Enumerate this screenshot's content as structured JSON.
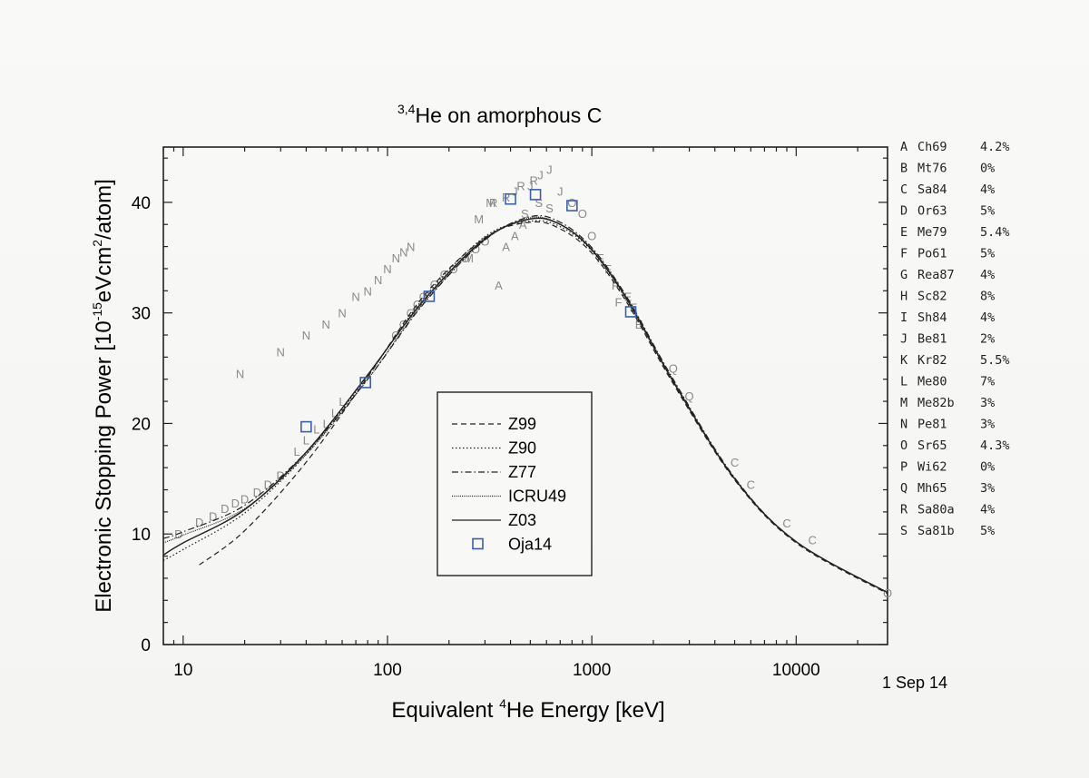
{
  "chart_data": {
    "type": "line",
    "title_sup": "3,4",
    "title_main": "He on amorphous C",
    "xlabel_pre": "Equivalent ",
    "xlabel_sup": "4",
    "xlabel_post": "He Energy [keV]",
    "ylabel_pre": "Electronic Stopping Power [10",
    "ylabel_sup1": "-15",
    "ylabel_mid": "eVcm",
    "ylabel_sup2": "2",
    "ylabel_post": "/atom]",
    "x_scale": "log",
    "xlim": [
      8,
      28000
    ],
    "ylim": [
      0,
      45
    ],
    "x_ticks": [
      10,
      100,
      1000,
      10000
    ],
    "x_tick_labels": [
      "10",
      "100",
      "1000",
      "10000"
    ],
    "y_ticks": [
      0,
      10,
      20,
      30,
      40
    ],
    "y_tick_labels": [
      "0",
      "10",
      "20",
      "30",
      "40"
    ],
    "legend_position": "center",
    "series": [
      {
        "name": "Z99",
        "style": "dashed",
        "x": [
          12,
          20,
          40,
          80,
          150,
          300,
          500,
          700,
          1000,
          1500,
          2500,
          5000,
          10000,
          28000
        ],
        "y": [
          7.2,
          10.3,
          16.5,
          24.2,
          31.5,
          36.8,
          38.2,
          37.6,
          35.4,
          30.8,
          23.6,
          14.9,
          9.2,
          4.6
        ]
      },
      {
        "name": "Z90",
        "style": "dotted",
        "x": [
          8,
          10,
          20,
          40,
          80,
          150,
          300,
          500,
          700,
          1000,
          1500,
          2500,
          5000,
          10000,
          28000
        ],
        "y": [
          7.6,
          8.6,
          11.9,
          17.2,
          24.3,
          31.3,
          36.9,
          38.3,
          37.8,
          35.6,
          31.0,
          23.8,
          15.0,
          9.3,
          4.7
        ]
      },
      {
        "name": "Z77",
        "style": "dashdot",
        "x": [
          8,
          10,
          20,
          40,
          80,
          150,
          300,
          500,
          700,
          1000,
          1500,
          2500,
          5000,
          10000,
          28000
        ],
        "y": [
          9.6,
          10.2,
          12.6,
          17.4,
          24.0,
          30.8,
          36.6,
          38.7,
          38.2,
          35.9,
          31.3,
          24.0,
          15.1,
          9.3,
          4.7
        ]
      },
      {
        "name": "ICRU49",
        "style": "dense-dot",
        "x": [
          8,
          10,
          20,
          40,
          80,
          150,
          300,
          500,
          700,
          1000,
          1500,
          2500,
          5000,
          10000,
          28000
        ],
        "y": [
          9.2,
          9.9,
          12.3,
          17.2,
          24.0,
          30.9,
          36.6,
          38.6,
          38.0,
          35.8,
          31.2,
          23.9,
          15.0,
          9.3,
          4.7
        ]
      },
      {
        "name": "Z03",
        "style": "solid",
        "x": [
          8,
          10,
          20,
          40,
          80,
          150,
          300,
          500,
          700,
          1000,
          1500,
          2500,
          5000,
          10000,
          28000
        ],
        "y": [
          8.1,
          9.2,
          12.2,
          17.4,
          24.4,
          31.1,
          36.7,
          38.5,
          38.0,
          35.7,
          31.1,
          23.8,
          15.0,
          9.3,
          4.7
        ]
      },
      {
        "name": "Oja14",
        "style": "square-marker",
        "x": [
          40,
          78,
          160,
          400,
          530,
          800,
          1550
        ],
        "y": [
          19.7,
          23.7,
          31.5,
          40.3,
          40.7,
          39.7,
          30.1
        ]
      }
    ],
    "markers": [
      {
        "label": "N",
        "x": [
          19,
          30,
          40,
          50,
          60,
          70,
          80,
          90,
          100,
          110,
          120,
          130
        ],
        "y": [
          24.5,
          26.5,
          28,
          29,
          30,
          31.5,
          32,
          33,
          34,
          35,
          35.5,
          36
        ]
      },
      {
        "label": "D",
        "x": [
          9.5,
          12,
          14,
          16,
          18,
          20,
          23,
          26,
          30
        ],
        "y": [
          10,
          11.1,
          11.6,
          12.3,
          12.8,
          13.2,
          13.8,
          14.5,
          15.3
        ]
      },
      {
        "label": "L",
        "x": [
          36,
          40,
          45,
          50,
          55,
          60
        ],
        "y": [
          17.5,
          18.5,
          19.5,
          20,
          21,
          22
        ]
      },
      {
        "label": "M",
        "x": [
          250,
          280,
          320
        ],
        "y": [
          35,
          38.5,
          40
        ]
      },
      {
        "label": "A",
        "x": [
          350,
          380,
          420,
          460
        ],
        "y": [
          32.5,
          36,
          37,
          38
        ]
      },
      {
        "label": "J",
        "x": [
          420,
          500,
          560,
          620,
          700
        ],
        "y": [
          41,
          41.5,
          42.5,
          43,
          41
        ]
      },
      {
        "label": "R",
        "x": [
          330,
          380,
          450,
          520
        ],
        "y": [
          40,
          40.5,
          41.5,
          42
        ]
      },
      {
        "label": "S",
        "x": [
          470,
          550,
          620
        ],
        "y": [
          39,
          40,
          39.5
        ]
      },
      {
        "label": "O",
        "x": [
          110,
          120,
          130,
          140,
          150,
          170,
          190,
          210,
          240,
          270,
          300,
          800,
          900,
          1000
        ],
        "y": [
          28,
          29,
          30,
          30.8,
          31.5,
          32.6,
          33.5,
          34,
          35,
          35.8,
          36.5,
          40,
          39,
          37
        ]
      },
      {
        "label": "F",
        "x": [
          1100,
          1200,
          1300,
          1350
        ],
        "y": [
          35,
          34,
          32.5,
          31
        ]
      },
      {
        "label": "E",
        "x": [
          1500,
          1600,
          1700
        ],
        "y": [
          31.5,
          30.5,
          29
        ]
      },
      {
        "label": "C",
        "x": [
          5000,
          6000,
          9000,
          12000
        ],
        "y": [
          16.5,
          14.5,
          11,
          9.5
        ]
      },
      {
        "label": "Q",
        "x": [
          2500,
          3000
        ],
        "y": [
          25,
          22.5
        ]
      },
      {
        "label": "O",
        "x": [
          28000
        ],
        "y": [
          4.7
        ]
      }
    ]
  },
  "legend": {
    "items": [
      {
        "name": "Z99",
        "style": "dashed"
      },
      {
        "name": "Z90",
        "style": "dotted"
      },
      {
        "name": "Z77",
        "style": "dashdot"
      },
      {
        "name": "ICRU49",
        "style": "dense-dot"
      },
      {
        "name": "Z03",
        "style": "solid"
      },
      {
        "name": "Oja14",
        "style": "square-marker"
      }
    ]
  },
  "references": [
    {
      "letter": "A",
      "code": "Ch69",
      "pct": "4.2%"
    },
    {
      "letter": "B",
      "code": "Mt76",
      "pct": "0%"
    },
    {
      "letter": "C",
      "code": "Sa84",
      "pct": "4%"
    },
    {
      "letter": "D",
      "code": "Or63",
      "pct": "5%"
    },
    {
      "letter": "E",
      "code": "Me79",
      "pct": "5.4%"
    },
    {
      "letter": "F",
      "code": "Po61",
      "pct": "5%"
    },
    {
      "letter": "G",
      "code": "Rea87",
      "pct": "4%"
    },
    {
      "letter": "H",
      "code": "Sc82",
      "pct": "8%"
    },
    {
      "letter": "I",
      "code": "Sh84",
      "pct": "4%"
    },
    {
      "letter": "J",
      "code": "Be81",
      "pct": "2%"
    },
    {
      "letter": "K",
      "code": "Kr82",
      "pct": "5.5%"
    },
    {
      "letter": "L",
      "code": "Me80",
      "pct": "7%"
    },
    {
      "letter": "M",
      "code": "Me82b",
      "pct": "3%"
    },
    {
      "letter": "N",
      "code": "Pe81",
      "pct": "3%"
    },
    {
      "letter": "O",
      "code": "Sr65",
      "pct": "4.3%"
    },
    {
      "letter": "P",
      "code": "Wi62",
      "pct": "0%"
    },
    {
      "letter": "Q",
      "code": "Mh65",
      "pct": "3%"
    },
    {
      "letter": "R",
      "code": "Sa80a",
      "pct": "4%"
    },
    {
      "letter": "S",
      "code": "Sa81b",
      "pct": "5%"
    }
  ],
  "date": "1 Sep 14",
  "colors": {
    "ink": "#222222",
    "marker_gray": "#8a8a8a",
    "oja_blue": "#3b5fb0"
  }
}
